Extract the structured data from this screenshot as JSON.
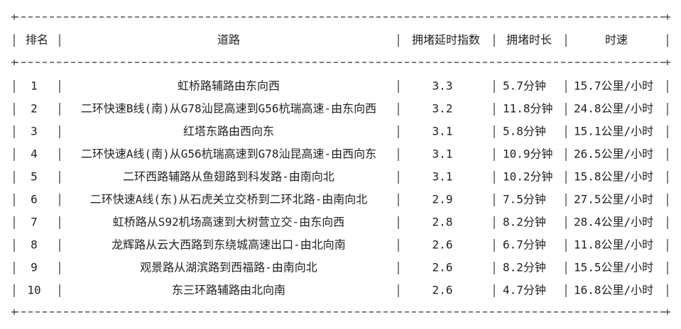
{
  "table": {
    "header": [
      "排名",
      "道路",
      "拥堵延时指数",
      "拥堵时长",
      "时速"
    ],
    "rows": [
      [
        1,
        "虹桥路辅路由东向西",
        3.3,
        "5.7分钟",
        "15.7公里/小时"
      ],
      [
        2,
        "二环快速B线(南)从G78汕昆高速到G56杭瑞高速-由东向西",
        3.2,
        "11.8分钟",
        "24.8公里/小时"
      ],
      [
        3,
        "红塔东路由西向东",
        3.1,
        "5.8分钟",
        "15.1公里/小时"
      ],
      [
        4,
        "二环快速A线(南)从G56杭瑞高速到G78汕昆高速-由西向东",
        3.1,
        "10.9分钟",
        "26.5公里/小时"
      ],
      [
        5,
        "二环西路辅路从鱼翅路到科发路-由南向北",
        3.1,
        "10.2分钟",
        "15.8公里/小时"
      ],
      [
        6,
        "二环快速A线(东)从石虎关立交桥到二环北路-由南向北",
        2.9,
        "7.5分钟",
        "27.5公里/小时"
      ],
      [
        7,
        "虹桥路从S92机场高速到大树营立交-由东向西",
        2.8,
        "8.2分钟",
        "28.4公里/小时"
      ],
      [
        8,
        "龙辉路从云大西路到东绕城高速出口-由北向南",
        2.6,
        "6.7分钟",
        "11.8公里/小时"
      ],
      [
        9,
        "观景路从湖滨路到西福路-由南向北",
        2.6,
        "8.2分钟",
        "15.5公里/小时"
      ],
      [
        10,
        "东三环路辅路由北向南",
        2.6,
        "4.7分钟",
        "16.8公里/小时"
      ]
    ]
  }
}
